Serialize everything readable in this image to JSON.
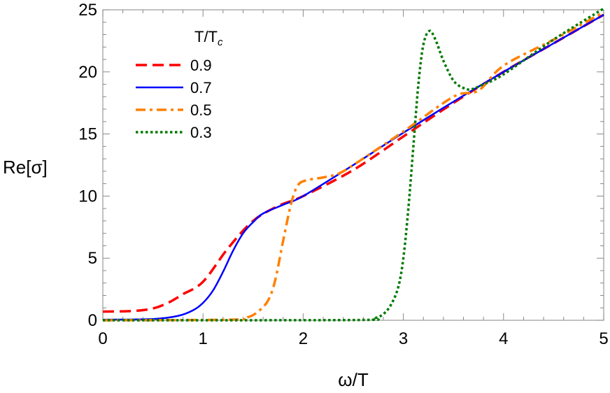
{
  "chart_data": {
    "type": "line",
    "xlabel": "ω/T",
    "ylabel": "Re[σ]",
    "xlim": [
      0,
      5
    ],
    "ylim": [
      0,
      25
    ],
    "xticks": [
      "0",
      "1",
      "2",
      "3",
      "4",
      "5"
    ],
    "yticks": [
      "0",
      "5",
      "10",
      "15",
      "20",
      "25"
    ],
    "grid": false,
    "legend": {
      "title": "T/T",
      "title_subscript": "c",
      "placement": "top-left"
    },
    "series": [
      {
        "name": "0.9",
        "color": "#ff0000",
        "style": "dashed",
        "x": [
          0,
          0.3,
          0.5,
          0.65,
          0.8,
          1.0,
          1.25,
          1.5,
          1.75,
          2.0,
          2.5,
          3.0,
          3.5,
          4.0,
          4.5,
          5.0
        ],
        "y": [
          0.7,
          0.75,
          0.95,
          1.4,
          2.1,
          3.1,
          5.8,
          8.0,
          9.2,
          10.0,
          12.1,
          14.8,
          17.5,
          20.0,
          22.3,
          24.6
        ]
      },
      {
        "name": "0.7",
        "color": "#0000ff",
        "style": "solid",
        "x": [
          0,
          0.5,
          0.75,
          0.9,
          1.0,
          1.1,
          1.2,
          1.3,
          1.4,
          1.5,
          1.6,
          1.8,
          2.0,
          2.5,
          3.0,
          3.5,
          4.0,
          4.5,
          5.0
        ],
        "y": [
          0.05,
          0.1,
          0.35,
          0.8,
          1.4,
          2.4,
          3.9,
          5.6,
          7.0,
          7.9,
          8.6,
          9.3,
          10.0,
          12.5,
          15.1,
          17.6,
          20.0,
          22.3,
          24.6
        ]
      },
      {
        "name": "0.5",
        "color": "#ff8000",
        "style": "dashdot",
        "x": [
          0,
          1.3,
          1.45,
          1.55,
          1.65,
          1.72,
          1.8,
          1.88,
          1.95,
          2.05,
          2.2,
          2.35,
          2.5,
          3.0,
          3.5,
          3.75,
          4.0,
          4.5,
          5.0
        ],
        "y": [
          0,
          0.05,
          0.25,
          0.7,
          1.6,
          3.2,
          6.4,
          9.4,
          10.9,
          11.3,
          11.5,
          11.8,
          12.5,
          15.2,
          18.0,
          18.5,
          20.5,
          22.6,
          24.8
        ]
      },
      {
        "name": "0.3",
        "color": "#007a00",
        "style": "dotted",
        "x": [
          0,
          2.5,
          2.7,
          2.8,
          2.88,
          2.95,
          3.0,
          3.05,
          3.1,
          3.15,
          3.2,
          3.26,
          3.32,
          3.4,
          3.5,
          3.6,
          3.68,
          3.8,
          4.0,
          4.5,
          5.0
        ],
        "y": [
          0,
          0.02,
          0.15,
          0.5,
          1.3,
          2.7,
          5.0,
          9.0,
          14.0,
          19.0,
          22.2,
          23.3,
          22.6,
          20.9,
          19.3,
          18.7,
          18.6,
          19.0,
          19.8,
          22.6,
          25.1
        ]
      }
    ]
  }
}
